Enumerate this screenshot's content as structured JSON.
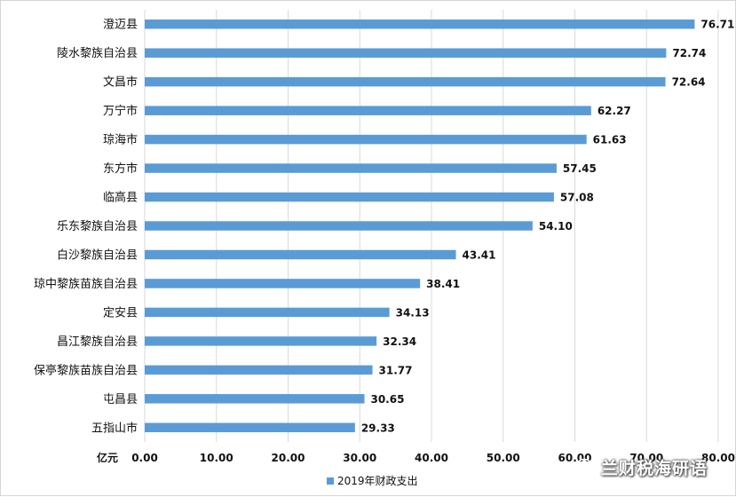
{
  "chart_data": {
    "type": "bar",
    "orientation": "horizontal",
    "categories": [
      "澄迈县",
      "陵水黎族自治县",
      "文昌市",
      "万宁市",
      "琼海市",
      "东方市",
      "临高县",
      "乐东黎族自治县",
      "白沙黎族自治县",
      "琼中黎族苗族自治县",
      "定安县",
      "昌江黎族自治县",
      "保亭黎族苗族自治县",
      "屯昌县",
      "五指山市"
    ],
    "series": [
      {
        "name": "2019年财政支出",
        "values": [
          76.71,
          72.74,
          72.64,
          62.27,
          61.63,
          57.45,
          57.08,
          54.1,
          43.41,
          38.41,
          34.13,
          32.34,
          31.77,
          30.65,
          29.33
        ],
        "color": "#5b9bd5"
      }
    ],
    "value_labels": [
      "76.71",
      "72.74",
      "72.64",
      "62.27",
      "61.63",
      "57.45",
      "57.08",
      "54.10",
      "43.41",
      "38.41",
      "34.13",
      "32.34",
      "31.77",
      "30.65",
      "29.33"
    ],
    "x_ticks": [
      "0.00",
      "10.00",
      "20.00",
      "30.00",
      "40.00",
      "50.00",
      "60.00",
      "70.00",
      "80.00"
    ],
    "x_unit": "亿元",
    "xlim": [
      0,
      80
    ],
    "grid": true,
    "legend_position": "bottom"
  },
  "watermark": {
    "text": "兰财税海研语",
    "icon": "wechat-icon"
  }
}
